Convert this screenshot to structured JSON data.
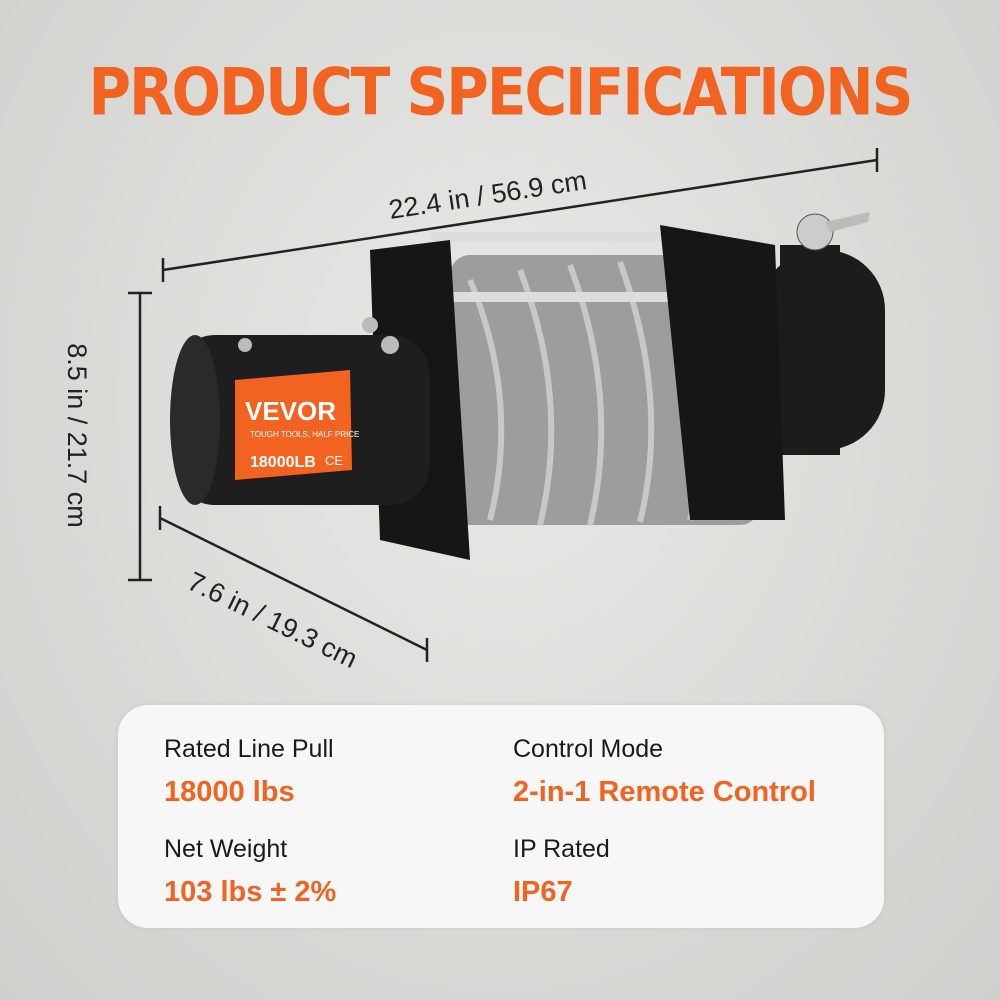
{
  "title": "PRODUCT SPECIFICATIONS",
  "dimensions": {
    "length": "22.4 in / 56.9 cm",
    "height": "8.5 in / 21.7 cm",
    "width": "7.6 in / 19.3 cm"
  },
  "product_label": {
    "brand": "VEVOR",
    "slogan": "TOUGH TOOLS, HALF PRICE",
    "capacity": "18000LB",
    "mark": "CE"
  },
  "specs": [
    {
      "label": "Rated Line Pull",
      "value": "18000 lbs"
    },
    {
      "label": "Control Mode",
      "value": "2-in-1 Remote Control"
    },
    {
      "label": "Net Weight",
      "value": "103 lbs ± 2%"
    },
    {
      "label": "IP Rated",
      "value": "IP67"
    }
  ],
  "colors": {
    "accent": "#f26322",
    "body": "#1c1c1c",
    "cable": "#a9a9a9"
  }
}
